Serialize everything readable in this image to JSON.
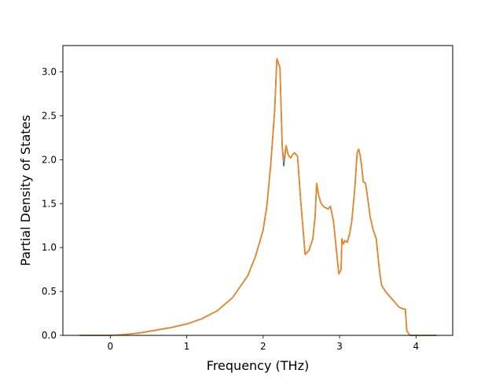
{
  "chart_data": {
    "type": "line",
    "title": "",
    "xlabel": "Frequency (THz)",
    "ylabel": "Partial Density of States",
    "xlim": [
      -0.62,
      4.48
    ],
    "ylim": [
      0.0,
      3.3
    ],
    "xticks": [
      0,
      1,
      2,
      3,
      4
    ],
    "yticks": [
      0.0,
      0.5,
      1.0,
      1.5,
      2.0,
      2.5,
      3.0
    ],
    "grid": false,
    "legend": "none",
    "series": [
      {
        "color": "#1f77b4",
        "x": [
          -0.4,
          0.0,
          0.2,
          0.4,
          0.6,
          0.8,
          1.0,
          1.2,
          1.4,
          1.6,
          1.8,
          1.9,
          2.0,
          2.05,
          2.1,
          2.15,
          2.18,
          2.22,
          2.25,
          2.27,
          2.3,
          2.33,
          2.36,
          2.38,
          2.41,
          2.45,
          2.49,
          2.55,
          2.6,
          2.65,
          2.68,
          2.7,
          2.73,
          2.76,
          2.8,
          2.85,
          2.88,
          2.92,
          2.96,
          2.99,
          3.02,
          3.03,
          3.05,
          3.07,
          3.1,
          3.13,
          3.16,
          3.2,
          3.23,
          3.25,
          3.27,
          3.29,
          3.31,
          3.34,
          3.37,
          3.4,
          3.44,
          3.48,
          3.52,
          3.55,
          3.6,
          3.65,
          3.7,
          3.75,
          3.78,
          3.81,
          3.84,
          3.86,
          3.88,
          3.92,
          4.0,
          4.27
        ],
        "values": [
          0.0,
          0.0,
          0.01,
          0.03,
          0.06,
          0.09,
          0.13,
          0.19,
          0.28,
          0.43,
          0.68,
          0.9,
          1.2,
          1.48,
          1.95,
          2.55,
          3.15,
          3.05,
          2.15,
          1.93,
          2.16,
          2.05,
          2.02,
          2.05,
          2.08,
          2.04,
          1.55,
          0.92,
          0.97,
          1.1,
          1.35,
          1.73,
          1.58,
          1.5,
          1.46,
          1.44,
          1.47,
          1.3,
          0.96,
          0.7,
          0.75,
          1.1,
          1.04,
          1.08,
          1.06,
          1.15,
          1.3,
          1.68,
          2.08,
          2.12,
          2.05,
          1.92,
          1.75,
          1.73,
          1.55,
          1.35,
          1.2,
          1.1,
          0.75,
          0.57,
          0.5,
          0.45,
          0.4,
          0.35,
          0.32,
          0.31,
          0.3,
          0.3,
          0.05,
          0.0,
          0.0,
          0.0
        ]
      },
      {
        "color": "#ff7f0e",
        "x": [
          -0.4,
          0.0,
          0.2,
          0.4,
          0.6,
          0.8,
          1.0,
          1.2,
          1.4,
          1.6,
          1.8,
          1.9,
          2.0,
          2.05,
          2.1,
          2.15,
          2.18,
          2.22,
          2.25,
          2.27,
          2.3,
          2.33,
          2.36,
          2.38,
          2.41,
          2.45,
          2.49,
          2.55,
          2.6,
          2.65,
          2.68,
          2.7,
          2.73,
          2.76,
          2.8,
          2.85,
          2.88,
          2.92,
          2.96,
          2.99,
          3.02,
          3.03,
          3.05,
          3.07,
          3.1,
          3.13,
          3.16,
          3.2,
          3.23,
          3.25,
          3.27,
          3.29,
          3.31,
          3.34,
          3.37,
          3.4,
          3.44,
          3.48,
          3.52,
          3.55,
          3.6,
          3.65,
          3.7,
          3.75,
          3.78,
          3.81,
          3.84,
          3.86,
          3.88,
          3.92,
          4.0,
          4.27
        ],
        "values": [
          0.0,
          0.0,
          0.01,
          0.03,
          0.06,
          0.09,
          0.13,
          0.19,
          0.28,
          0.43,
          0.68,
          0.9,
          1.2,
          1.48,
          1.95,
          2.55,
          3.15,
          3.05,
          2.15,
          1.98,
          2.16,
          2.05,
          2.02,
          2.05,
          2.08,
          2.04,
          1.55,
          0.92,
          0.97,
          1.1,
          1.35,
          1.73,
          1.58,
          1.5,
          1.46,
          1.44,
          1.47,
          1.3,
          0.96,
          0.7,
          0.75,
          1.1,
          1.04,
          1.08,
          1.06,
          1.15,
          1.3,
          1.68,
          2.08,
          2.12,
          2.05,
          1.92,
          1.75,
          1.73,
          1.55,
          1.35,
          1.2,
          1.1,
          0.75,
          0.57,
          0.5,
          0.45,
          0.4,
          0.35,
          0.32,
          0.31,
          0.3,
          0.3,
          0.05,
          0.0,
          0.0,
          0.0
        ]
      }
    ]
  }
}
